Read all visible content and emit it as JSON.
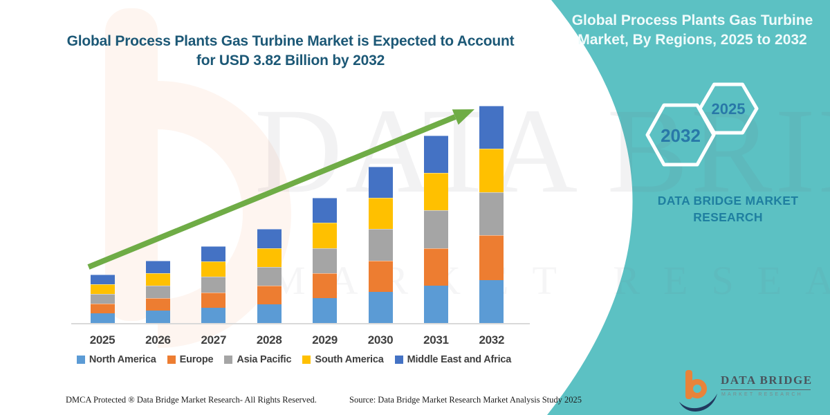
{
  "header": {
    "title_line1": "Global Process Plants Gas Turbine Market is Expected to Account",
    "title_line2": "for USD 3.82 Billion by 2032"
  },
  "panel": {
    "background_color": "#5CC1C3",
    "title_line1": "Global Process Plants Gas Turbine",
    "title_line2": "Market, By Regions, 2025 to 2032",
    "hex_left_label": "2032",
    "hex_right_label": "2025",
    "brand_text": "DATA BRIDGE MARKET RESEARCH"
  },
  "chart_data": {
    "type": "bar",
    "stacked": true,
    "title": "Global Process Plants Gas Turbine Market, By Regions, 2025 to 2032",
    "unit": "USD Billion",
    "categories": [
      "2025",
      "2026",
      "2027",
      "2028",
      "2029",
      "2030",
      "2031",
      "2032"
    ],
    "series": [
      {
        "name": "North America",
        "color": "#5B9BD5",
        "values": [
          0.17,
          0.22,
          0.27,
          0.33,
          0.44,
          0.55,
          0.66,
          0.76
        ]
      },
      {
        "name": "Europe",
        "color": "#ED7D31",
        "values": [
          0.17,
          0.22,
          0.27,
          0.33,
          0.44,
          0.55,
          0.66,
          0.78
        ]
      },
      {
        "name": "Asia Pacific",
        "color": "#A5A5A5",
        "values": [
          0.17,
          0.22,
          0.27,
          0.33,
          0.44,
          0.55,
          0.66,
          0.76
        ]
      },
      {
        "name": "South America",
        "color": "#FFC000",
        "values": [
          0.17,
          0.22,
          0.27,
          0.33,
          0.44,
          0.55,
          0.66,
          0.76
        ]
      },
      {
        "name": "Middle East and Africa",
        "color": "#4472C4",
        "values": [
          0.17,
          0.22,
          0.27,
          0.33,
          0.44,
          0.55,
          0.66,
          0.76
        ]
      }
    ],
    "totals_estimated": [
      0.85,
      1.1,
      1.35,
      1.65,
      2.2,
      2.75,
      3.3,
      3.82
    ],
    "ylim": [
      0,
      4
    ],
    "grid": false,
    "legend_position": "bottom",
    "annotations": [
      "upward green growth arrow from 2025 bar to 2032 bar"
    ],
    "arrow_color": "#6FAC46"
  },
  "watermark": {
    "letter": "b",
    "text_large": "DATA BRIDGE",
    "text_small": "MARKET RESEARCH"
  },
  "logo": {
    "wordmark": "DATA BRIDGE",
    "subtitle": "MARKET RESEARCH"
  },
  "footer": {
    "left": "DMCA Protected ® Data Bridge Market Research-  All Rights Reserved.",
    "source": "Source: Data Bridge Market Research  Market Analysis Study 2025"
  }
}
